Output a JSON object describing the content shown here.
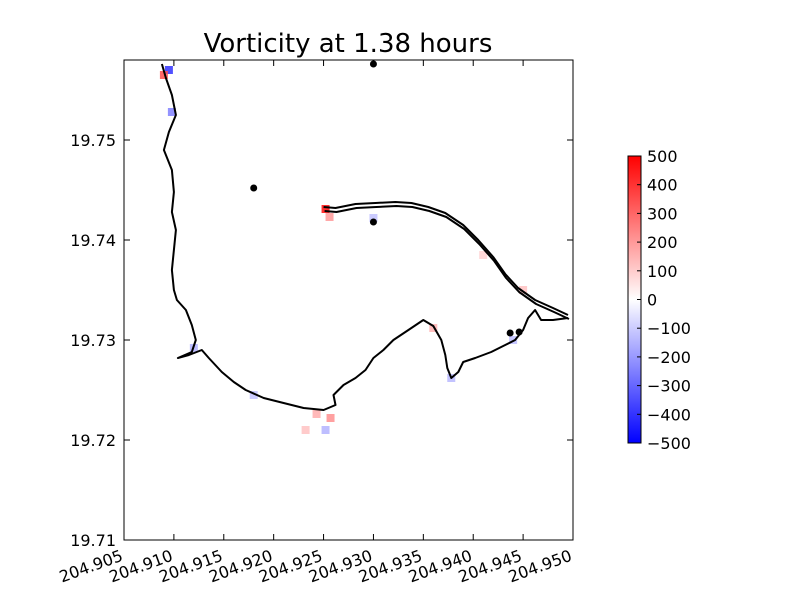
{
  "chart_data": {
    "type": "heatmap",
    "title": "Vorticity at 1.38 hours",
    "xlabel": "",
    "ylabel": "",
    "xlim": [
      204.905,
      204.95
    ],
    "ylim": [
      19.71,
      19.758
    ],
    "x_ticks": [
      204.905,
      204.91,
      204.915,
      204.92,
      204.925,
      204.93,
      204.935,
      204.94,
      204.945,
      204.95
    ],
    "x_tick_labels": [
      "204.905",
      "204.910",
      "204.915",
      "204.920",
      "204.925",
      "204.930",
      "204.935",
      "204.940",
      "204.945",
      "204.950"
    ],
    "y_ticks": [
      19.71,
      19.72,
      19.73,
      19.74,
      19.75
    ],
    "y_tick_labels": [
      "19.71",
      "19.72",
      "19.73",
      "19.74",
      "19.75"
    ],
    "colorbar": {
      "min": -500,
      "max": 500,
      "ticks": [
        500,
        400,
        300,
        200,
        100,
        0,
        -100,
        -200,
        -300,
        -400,
        -500
      ],
      "tick_labels": [
        "500",
        "400",
        "300",
        "200",
        "100",
        "0",
        "−100",
        "−200",
        "−300",
        "−400",
        "−500"
      ],
      "colormap": "bwr",
      "low_color": "#0000ff",
      "mid_color": "#ffffff",
      "high_color": "#ff0000"
    },
    "gauge_points": [
      {
        "x": 204.93,
        "y": 19.7576
      },
      {
        "x": 204.918,
        "y": 19.7452
      },
      {
        "x": 204.93,
        "y": 19.7418
      },
      {
        "x": 204.9437,
        "y": 19.7307
      },
      {
        "x": 204.9446,
        "y": 19.7308
      }
    ],
    "shoreline": [
      [
        204.9088,
        19.7576
      ],
      [
        204.9092,
        19.7562
      ],
      [
        204.9098,
        19.7545
      ],
      [
        204.9102,
        19.7525
      ],
      [
        204.9095,
        19.7508
      ],
      [
        204.909,
        19.749
      ],
      [
        204.9098,
        19.747
      ],
      [
        204.91,
        19.7448
      ],
      [
        204.9098,
        19.7428
      ],
      [
        204.9102,
        19.741
      ],
      [
        204.91,
        19.739
      ],
      [
        204.9098,
        19.737
      ],
      [
        204.91,
        19.735
      ],
      [
        204.9103,
        19.734
      ],
      [
        204.9112,
        19.733
      ],
      [
        204.9118,
        19.7315
      ],
      [
        204.9122,
        19.73
      ],
      [
        204.9118,
        19.7288
      ],
      [
        204.9104,
        19.7282
      ],
      [
        204.9115,
        19.7285
      ],
      [
        204.9128,
        19.729
      ],
      [
        204.9135,
        19.7282
      ],
      [
        204.9148,
        19.7268
      ],
      [
        204.916,
        19.7258
      ],
      [
        204.9172,
        19.725
      ],
      [
        204.919,
        19.7242
      ],
      [
        204.921,
        19.7237
      ],
      [
        204.923,
        19.7232
      ],
      [
        204.925,
        19.723
      ],
      [
        204.9262,
        19.7235
      ],
      [
        204.926,
        19.7245
      ],
      [
        204.927,
        19.7255
      ],
      [
        204.9282,
        19.7262
      ],
      [
        204.9292,
        19.727
      ],
      [
        204.93,
        19.7282
      ],
      [
        204.931,
        19.729
      ],
      [
        204.932,
        19.73
      ],
      [
        204.9335,
        19.731
      ],
      [
        204.935,
        19.732
      ],
      [
        204.936,
        19.7314
      ],
      [
        204.9368,
        19.73
      ],
      [
        204.9372,
        19.7285
      ],
      [
        204.9374,
        19.7272
      ],
      [
        204.9378,
        19.7262
      ],
      [
        204.9385,
        19.7268
      ],
      [
        204.939,
        19.7278
      ],
      [
        204.9402,
        19.7282
      ],
      [
        204.9418,
        19.7288
      ],
      [
        204.943,
        19.7294
      ],
      [
        204.9442,
        19.73
      ],
      [
        204.945,
        19.731
      ],
      [
        204.9455,
        19.7322
      ],
      [
        204.9462,
        19.733
      ],
      [
        204.9468,
        19.732
      ],
      [
        204.948,
        19.732
      ],
      [
        204.9495,
        19.7322
      ]
    ],
    "breakwater": [
      [
        204.925,
        19.7433
      ],
      [
        204.9262,
        19.7432
      ],
      [
        204.9282,
        19.7436
      ],
      [
        204.9302,
        19.7437
      ],
      [
        204.9322,
        19.7438
      ],
      [
        204.9338,
        19.7437
      ],
      [
        204.9355,
        19.7433
      ],
      [
        204.9372,
        19.7427
      ],
      [
        204.939,
        19.7415
      ],
      [
        204.9405,
        19.74
      ],
      [
        204.942,
        19.7383
      ],
      [
        204.9432,
        19.7366
      ],
      [
        204.9445,
        19.7352
      ],
      [
        204.9462,
        19.734
      ],
      [
        204.948,
        19.7332
      ],
      [
        204.9495,
        19.7325
      ]
    ],
    "vorticity_patches": [
      {
        "x": 204.9095,
        "y": 19.757,
        "value": -400
      },
      {
        "x": 204.909,
        "y": 19.7565,
        "value": 350
      },
      {
        "x": 204.9098,
        "y": 19.7528,
        "value": -250
      },
      {
        "x": 204.9252,
        "y": 19.7431,
        "value": 480
      },
      {
        "x": 204.9256,
        "y": 19.7423,
        "value": 200
      },
      {
        "x": 204.93,
        "y": 19.7422,
        "value": -120
      },
      {
        "x": 204.912,
        "y": 19.7292,
        "value": -150
      },
      {
        "x": 204.918,
        "y": 19.7245,
        "value": -120
      },
      {
        "x": 204.9243,
        "y": 19.7226,
        "value": 160
      },
      {
        "x": 204.9257,
        "y": 19.7222,
        "value": 220
      },
      {
        "x": 204.9232,
        "y": 19.721,
        "value": 120
      },
      {
        "x": 204.9252,
        "y": 19.721,
        "value": -150
      },
      {
        "x": 204.936,
        "y": 19.7312,
        "value": 150
      },
      {
        "x": 204.9378,
        "y": 19.7262,
        "value": -140
      },
      {
        "x": 204.944,
        "y": 19.73,
        "value": -130
      },
      {
        "x": 204.941,
        "y": 19.7385,
        "value": 90
      },
      {
        "x": 204.945,
        "y": 19.735,
        "value": 120
      }
    ]
  }
}
